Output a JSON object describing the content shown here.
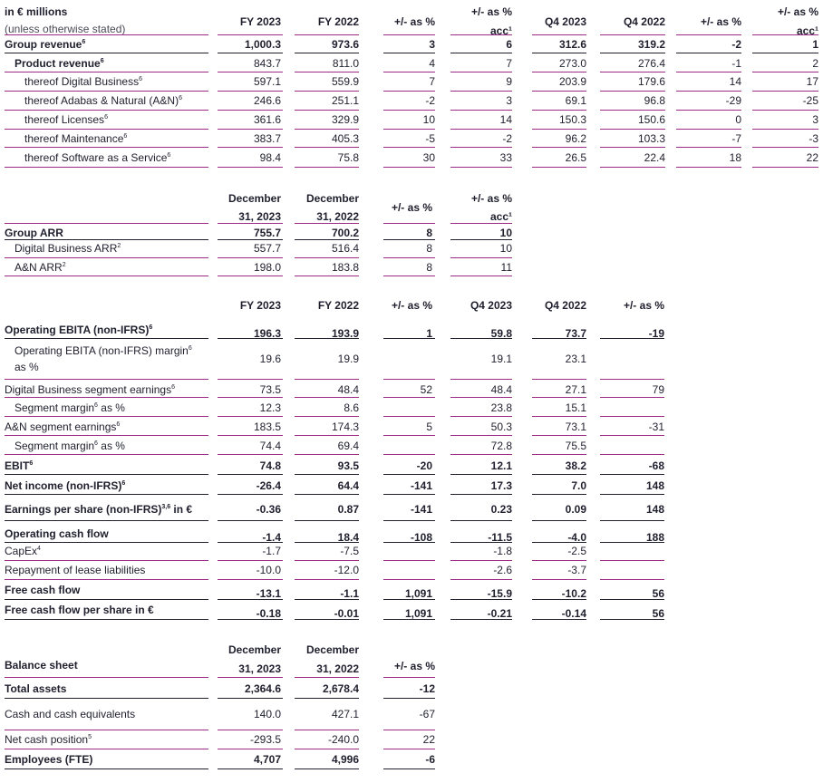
{
  "revenue": {
    "head": {
      "label1": "in € millions",
      "label2": "(unless otherwise stated)",
      "cols": [
        "FY 2023",
        "FY 2022",
        "+/- as %",
        "+/- as %",
        "Q4 2023",
        "Q4 2022",
        "+/- as %",
        "+/- as %"
      ],
      "acc": "acc¹"
    },
    "rows": [
      {
        "label": "Group revenue",
        "sup": "6",
        "bold": true,
        "indent": 0,
        "v": [
          "1,000.3",
          "973.6",
          "3",
          "6",
          "312.6",
          "319.2",
          "-2",
          "1"
        ]
      },
      {
        "label": "Product revenue",
        "sup": "6",
        "bold": true,
        "indent": 1,
        "v": [
          "843.7",
          "811.0",
          "4",
          "7",
          "273.0",
          "276.4",
          "-1",
          "2"
        ]
      },
      {
        "label": "thereof Digital Business",
        "sup": "6",
        "bold": false,
        "indent": 2,
        "v": [
          "597.1",
          "559.9",
          "7",
          "9",
          "203.9",
          "179.6",
          "14",
          "17"
        ]
      },
      {
        "label": "thereof Adabas & Natural (A&N)",
        "sup": "6",
        "bold": false,
        "indent": 2,
        "v": [
          "246.6",
          "251.1",
          "-2",
          "3",
          "69.1",
          "96.8",
          "-29",
          "-25"
        ]
      },
      {
        "label": "thereof Licenses",
        "sup": "6",
        "bold": false,
        "indent": 2,
        "v": [
          "361.6",
          "329.9",
          "10",
          "14",
          "150.3",
          "150.6",
          "0",
          "3"
        ]
      },
      {
        "label": "thereof Maintenance",
        "sup": "6",
        "bold": false,
        "indent": 2,
        "v": [
          "383.7",
          "405.3",
          "-5",
          "-2",
          "96.2",
          "103.3",
          "-7",
          "-3"
        ]
      },
      {
        "label": "thereof Software as a Service",
        "sup": "6",
        "bold": false,
        "indent": 2,
        "v": [
          "98.4",
          "75.8",
          "30",
          "33",
          "26.5",
          "22.4",
          "18",
          "22"
        ]
      }
    ]
  },
  "arr": {
    "head": {
      "col1a": "December",
      "col1b": "31, 2023",
      "col2a": "December",
      "col2b": "31, 2022",
      "col3": "+/- as %",
      "col4": "+/- as %",
      "acc": "acc¹"
    },
    "rows": [
      {
        "label": "Group ARR",
        "sup": "",
        "bold": true,
        "indent": 0,
        "v": [
          "755.7",
          "700.2",
          "8",
          "10"
        ]
      },
      {
        "label": "Digital Business ARR",
        "sup": "2",
        "bold": false,
        "indent": 1,
        "v": [
          "557.7",
          "516.4",
          "8",
          "10"
        ]
      },
      {
        "label": "A&N ARR",
        "sup": "2",
        "bold": false,
        "indent": 1,
        "v": [
          "198.0",
          "183.8",
          "8",
          "11"
        ]
      }
    ]
  },
  "earnings": {
    "head": {
      "cols": [
        "FY 2023",
        "FY 2022",
        "+/- as %",
        "Q4 2023",
        "Q4 2022",
        "+/- as %"
      ]
    },
    "rows": [
      {
        "label": "Operating EBITA (non-IFRS)",
        "sup": "6",
        "bold": true,
        "indent": 0,
        "v": [
          "196.3",
          "193.9",
          "1",
          "59.8",
          "73.7",
          "-19"
        ]
      },
      {
        "label": "Operating EBITA (non-IFRS) margin",
        "label2": "as %",
        "sup": "6",
        "bold": false,
        "indent": 1,
        "v": [
          "19.6",
          "19.9",
          "",
          "19.1",
          "23.1",
          ""
        ]
      },
      {
        "label": "Digital Business segment earnings",
        "sup": "6",
        "bold": false,
        "indent": 0,
        "v": [
          "73.5",
          "48.4",
          "52",
          "48.4",
          "27.1",
          "79"
        ]
      },
      {
        "label": "Segment margin",
        "suffix": " as %",
        "sup": "6",
        "bold": false,
        "indent": 1,
        "v": [
          "12.3",
          "8.6",
          "",
          "23.8",
          "15.1",
          ""
        ]
      },
      {
        "label": "A&N segment earnings",
        "sup": "6",
        "bold": false,
        "indent": 0,
        "v": [
          "183.5",
          "174.3",
          "5",
          "50.3",
          "73.1",
          "-31"
        ]
      },
      {
        "label": "Segment margin",
        "suffix": " as %",
        "sup": "6",
        "bold": false,
        "indent": 1,
        "v": [
          "74.4",
          "69.4",
          "",
          "72.8",
          "75.5",
          ""
        ]
      },
      {
        "label": "EBIT",
        "sup": "6",
        "bold": true,
        "indent": 0,
        "v": [
          "74.8",
          "93.5",
          "-20",
          "12.1",
          "38.2",
          "-68"
        ]
      },
      {
        "label": "Net income (non-IFRS)",
        "sup": "6",
        "bold": true,
        "indent": 0,
        "v": [
          "-26.4",
          "64.4",
          "-141",
          "17.3",
          "7.0",
          "148"
        ]
      },
      {
        "label": "Earnings per share (non-IFRS)",
        "suffix": " in €",
        "sup": "3,6",
        "bold": true,
        "indent": 0,
        "v": [
          "-0.36",
          "0.87",
          "-141",
          "0.23",
          "0.09",
          "148"
        ]
      },
      {
        "label": "Operating cash flow",
        "sup": "",
        "bold": true,
        "indent": 0,
        "v": [
          "-1.4",
          "18.4",
          "-108",
          "-11.5",
          "-4.0",
          "188"
        ]
      },
      {
        "label": "CapEx",
        "sup": "4",
        "bold": false,
        "indent": 0,
        "v": [
          "-1.7",
          "-7.5",
          "",
          "-1.8",
          "-2.5",
          ""
        ]
      },
      {
        "label": "Repayment of lease liabilities",
        "sup": "",
        "bold": false,
        "indent": 0,
        "v": [
          "-10.0",
          "-12.0",
          "",
          "-2.6",
          "-3.7",
          ""
        ]
      },
      {
        "label": "Free cash flow",
        "sup": "",
        "bold": true,
        "indent": 0,
        "v": [
          "-13.1",
          "-1.1",
          "1,091",
          "-15.9",
          "-10.2",
          "56"
        ]
      },
      {
        "label": "Free cash flow per share in €",
        "sup": "",
        "bold": true,
        "indent": 0,
        "v": [
          "-0.18",
          "-0.01",
          "1,091",
          "-0.21",
          "-0.14",
          "56"
        ]
      }
    ]
  },
  "balance": {
    "head": {
      "label": "Balance sheet",
      "col1a": "December",
      "col1b": "31, 2023",
      "col2a": "December",
      "col2b": "31, 2022",
      "col3": "+/- as %"
    },
    "rows": [
      {
        "label": "Total assets",
        "sup": "",
        "bold": true,
        "indent": 0,
        "v": [
          "2,364.6",
          "2,678.4",
          "-12"
        ]
      },
      {
        "label": "Cash and cash equivalents",
        "sup": "",
        "bold": false,
        "indent": 0,
        "v": [
          "140.0",
          "427.1",
          "-67"
        ]
      },
      {
        "label": "Net cash position",
        "sup": "5",
        "bold": false,
        "indent": 0,
        "v": [
          "-293.5",
          "-240.0",
          "22"
        ]
      },
      {
        "label": "Employees (FTE)",
        "sup": "",
        "bold": true,
        "indent": 0,
        "v": [
          "4,707",
          "4,996",
          "-6"
        ]
      }
    ]
  }
}
